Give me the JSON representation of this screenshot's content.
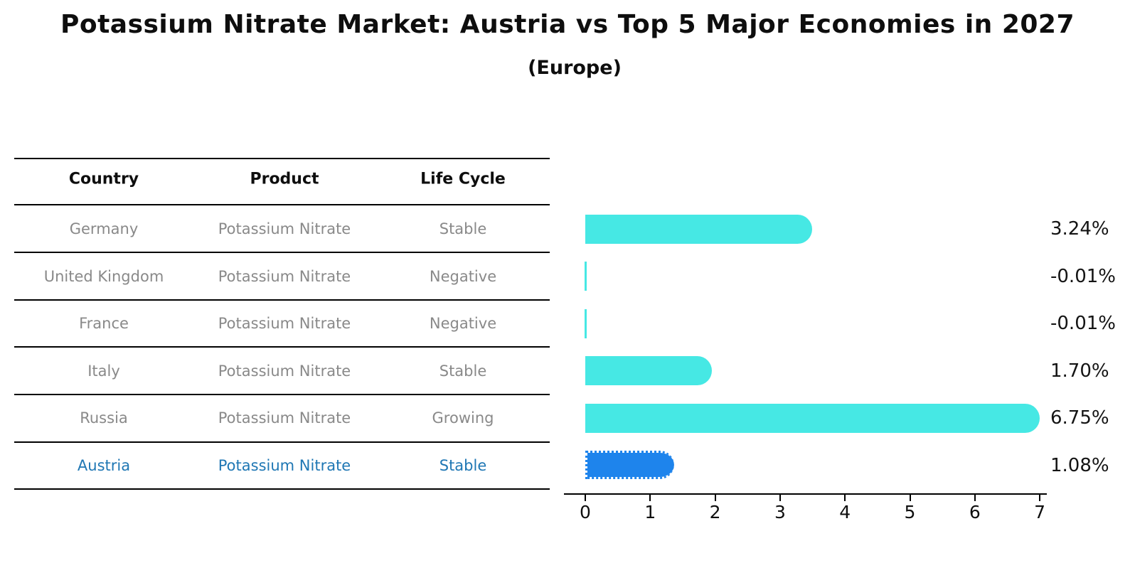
{
  "title": "Potassium Nitrate Market: Austria vs Top 5 Major Economies in 2027",
  "subtitle": "(Europe)",
  "table": {
    "headers": [
      "Country",
      "Product",
      "Life Cycle"
    ],
    "rows": [
      {
        "country": "Germany",
        "product": "Potassium Nitrate",
        "life_cycle": "Stable",
        "value": 3.24,
        "value_label": "3.24%",
        "highlight": false
      },
      {
        "country": "United Kingdom",
        "product": "Potassium Nitrate",
        "life_cycle": "Negative",
        "value": -0.01,
        "value_label": "-0.01%",
        "highlight": false
      },
      {
        "country": "France",
        "product": "Potassium Nitrate",
        "life_cycle": "Negative",
        "value": -0.01,
        "value_label": "-0.01%",
        "highlight": false
      },
      {
        "country": "Italy",
        "product": "Potassium Nitrate",
        "life_cycle": "Stable",
        "value": 1.7,
        "value_label": "1.70%",
        "highlight": false
      },
      {
        "country": "Russia",
        "product": "Potassium Nitrate",
        "life_cycle": "Growing",
        "value": 6.75,
        "value_label": "6.75%",
        "highlight": false
      },
      {
        "country": "Austria",
        "product": "Potassium Nitrate",
        "life_cycle": "Stable",
        "value": 1.08,
        "value_label": "1.08%",
        "highlight": true
      }
    ]
  },
  "chart_data": {
    "type": "bar",
    "orientation": "horizontal",
    "title": "Potassium Nitrate Market: Austria vs Top 5 Major Economies in 2027 (Europe)",
    "categories": [
      "Germany",
      "United Kingdom",
      "France",
      "Italy",
      "Russia",
      "Austria"
    ],
    "values": [
      3.24,
      -0.01,
      -0.01,
      1.7,
      6.75,
      1.08
    ],
    "value_labels": [
      "3.24%",
      "-0.01%",
      "-0.01%",
      "1.70%",
      "6.75%",
      "1.08%"
    ],
    "xlabel": "",
    "ylabel": "",
    "xlim": [
      0,
      7
    ],
    "x_ticks": [
      "0",
      "1",
      "2",
      "3",
      "4",
      "5",
      "6",
      "7"
    ],
    "grid": false,
    "legend": false,
    "highlight_category": "Austria"
  },
  "colors": {
    "bar": "#46e8e4",
    "highlight_bar": "#1e84ec",
    "highlight_text": "#1f77b4",
    "row_text": "#898989",
    "line": "#000000"
  }
}
